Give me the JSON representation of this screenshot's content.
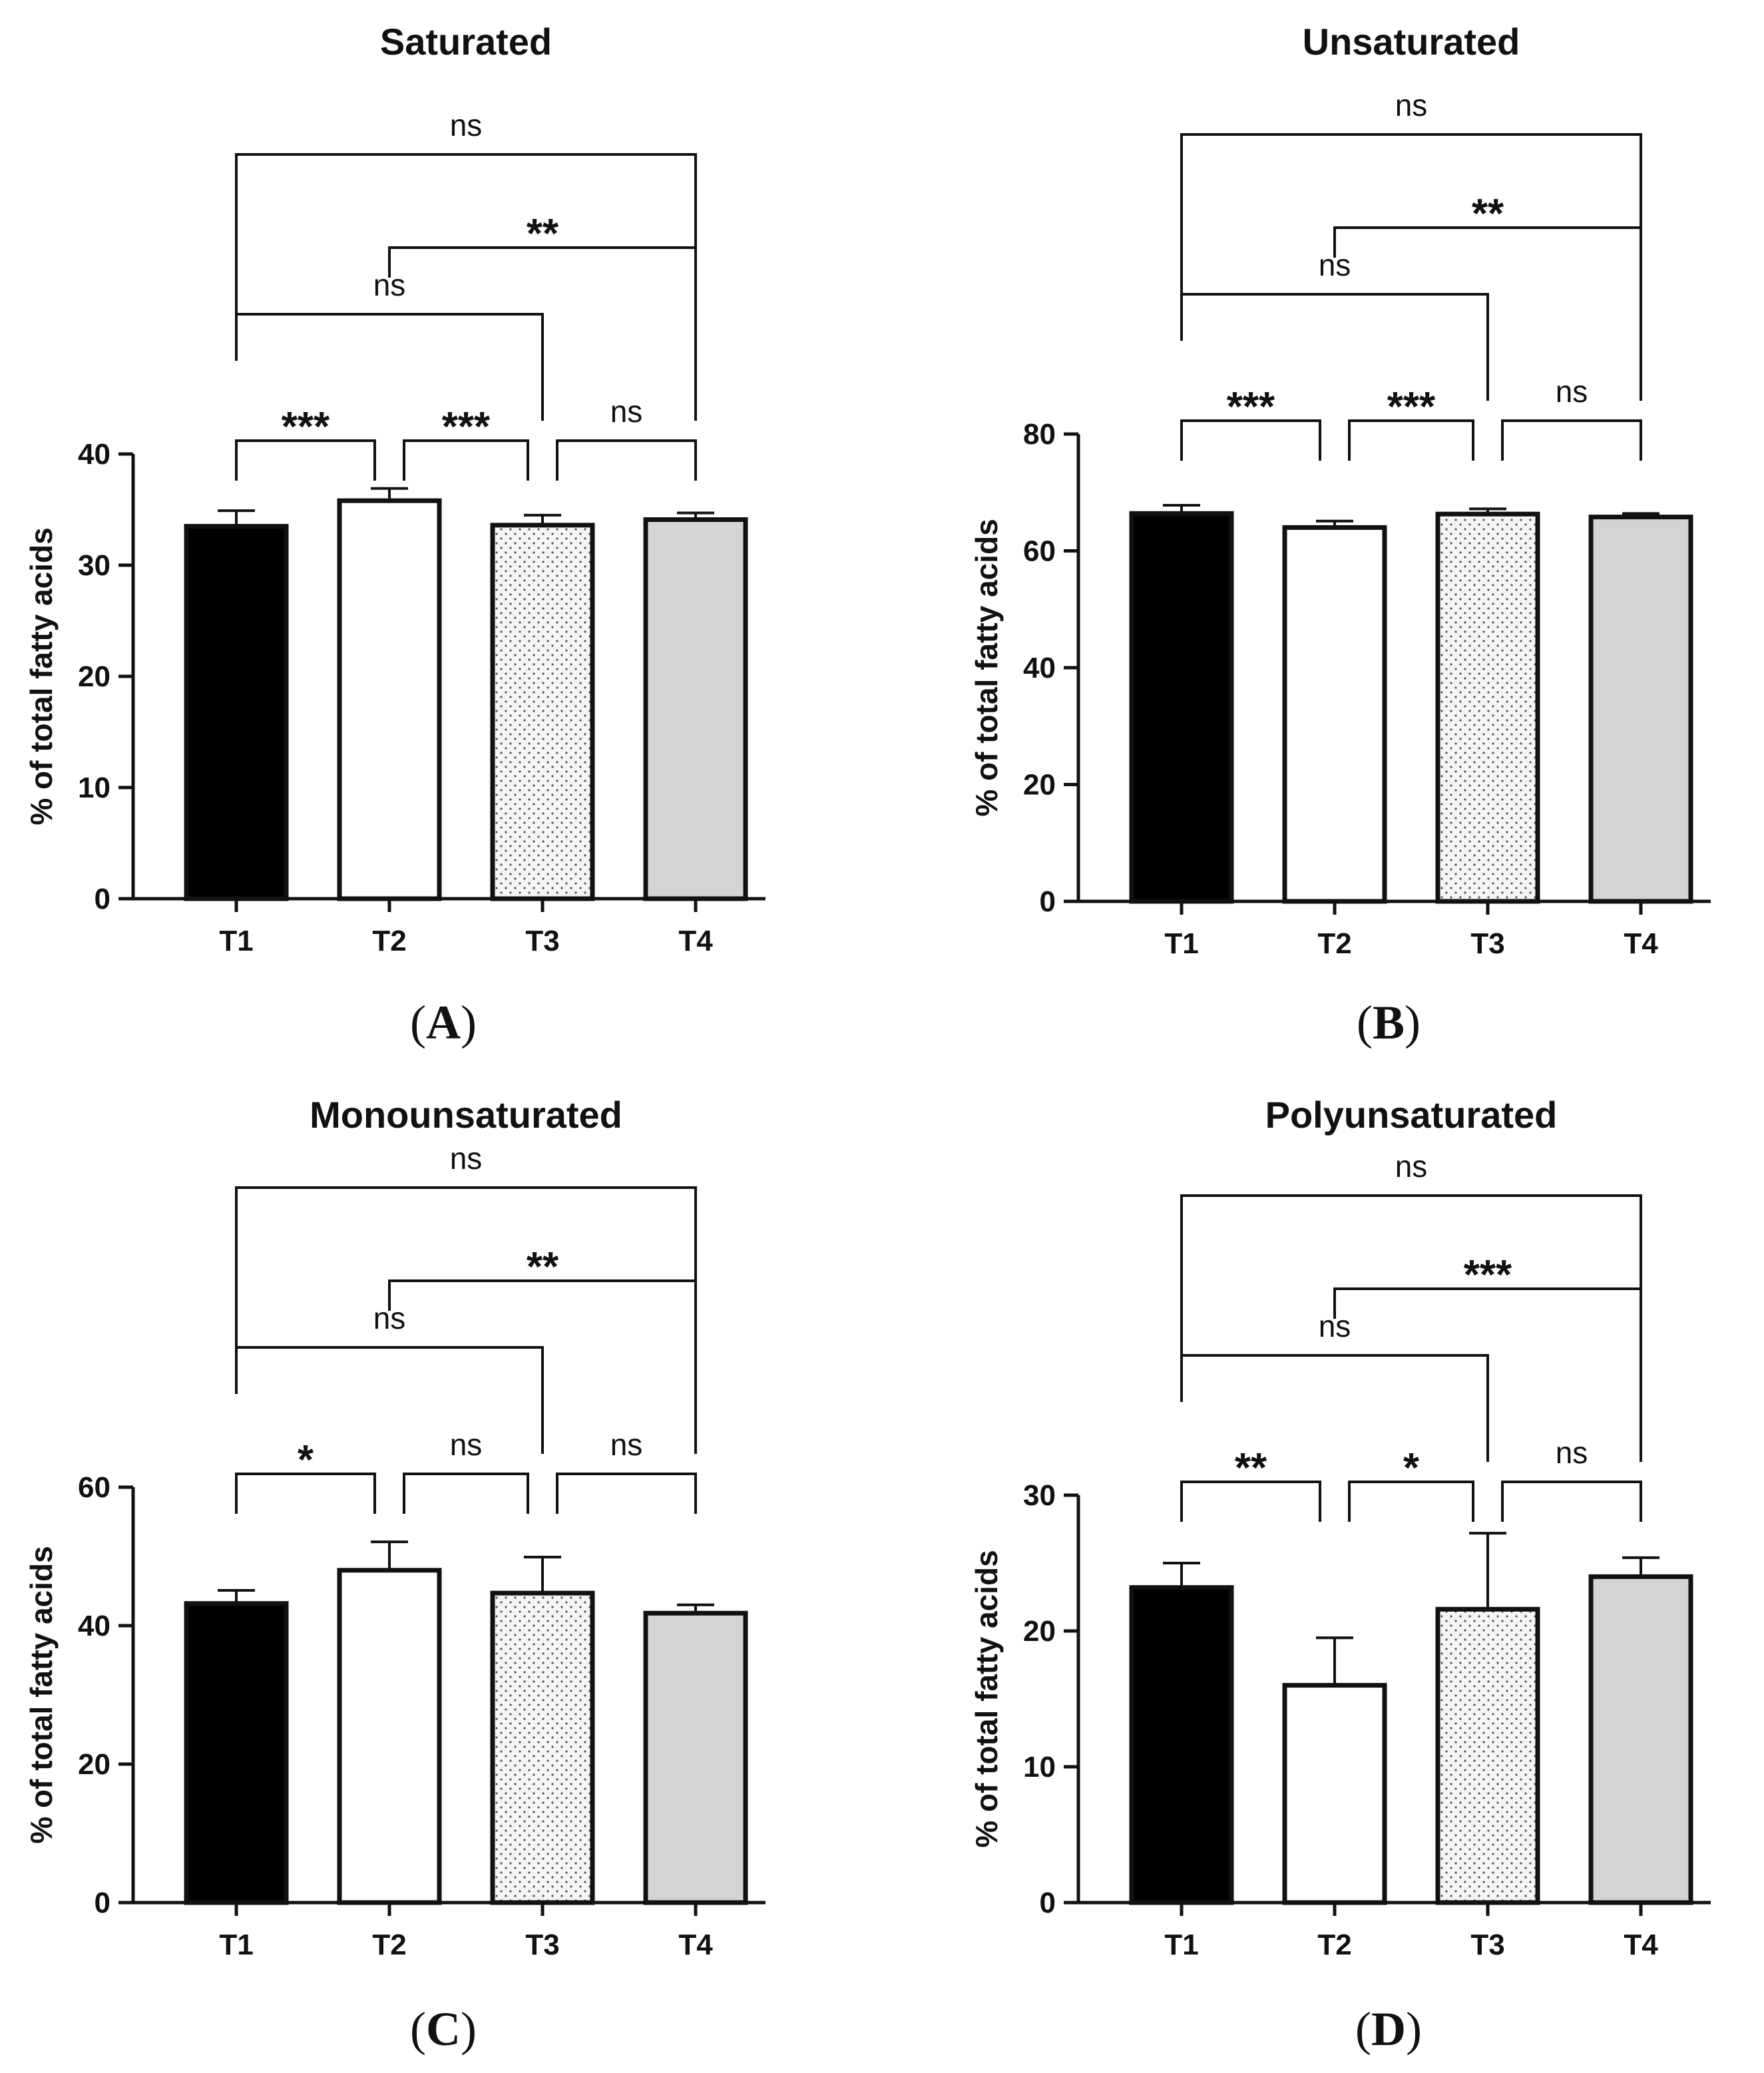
{
  "colors": {
    "ink": "#111111",
    "t1": "#000000",
    "t2": "#ffffff",
    "t3": "#f2f2f2",
    "t4": "#d4d4d4",
    "dots": "#555555"
  },
  "chart_data": [
    {
      "id": "A",
      "panel_label": "A",
      "type": "bar",
      "title": "Saturated",
      "ylabel": "% of total fatty acids",
      "categories": [
        "T1",
        "T2",
        "T3",
        "T4"
      ],
      "values": [
        33.5,
        35.8,
        33.6,
        34.1
      ],
      "errors": [
        1.4,
        1.1,
        0.9,
        0.6
      ],
      "ylim": [
        0,
        40
      ],
      "yticks": [
        0,
        10,
        20,
        30,
        40
      ],
      "comparisons": [
        {
          "from": 0,
          "to": 1,
          "label": "***",
          "level": 1
        },
        {
          "from": 1,
          "to": 2,
          "label": "***",
          "level": 1
        },
        {
          "from": 2,
          "to": 3,
          "label": "ns",
          "level": 1
        },
        {
          "from": 0,
          "to": 2,
          "label": "ns",
          "level": 2
        },
        {
          "from": 1,
          "to": 3,
          "label": "**",
          "level": 3
        },
        {
          "from": 0,
          "to": 3,
          "label": "ns",
          "level": 4
        }
      ]
    },
    {
      "id": "B",
      "panel_label": "B",
      "type": "bar",
      "title": "Unsaturated",
      "ylabel": "% of total fatty acids",
      "categories": [
        "T1",
        "T2",
        "T3",
        "T4"
      ],
      "values": [
        66.4,
        64.0,
        66.3,
        65.8
      ],
      "errors": [
        1.4,
        1.1,
        0.9,
        0.6
      ],
      "ylim": [
        0,
        80
      ],
      "yticks": [
        0,
        20,
        40,
        60,
        80
      ],
      "comparisons": [
        {
          "from": 0,
          "to": 1,
          "label": "***",
          "level": 1
        },
        {
          "from": 1,
          "to": 2,
          "label": "***",
          "level": 1
        },
        {
          "from": 2,
          "to": 3,
          "label": "ns",
          "level": 1
        },
        {
          "from": 0,
          "to": 2,
          "label": "ns",
          "level": 2
        },
        {
          "from": 1,
          "to": 3,
          "label": "**",
          "level": 3
        },
        {
          "from": 0,
          "to": 3,
          "label": "ns",
          "level": 4
        }
      ]
    },
    {
      "id": "C",
      "panel_label": "C",
      "type": "bar",
      "title": "Monounsaturated",
      "ylabel": "% of total fatty acids",
      "categories": [
        "T1",
        "T2",
        "T3",
        "T4"
      ],
      "values": [
        43.2,
        48.0,
        44.7,
        41.8
      ],
      "errors": [
        1.9,
        4.1,
        5.2,
        1.2
      ],
      "ylim": [
        0,
        60
      ],
      "yticks": [
        0,
        20,
        40,
        60
      ],
      "comparisons": [
        {
          "from": 0,
          "to": 1,
          "label": "*",
          "level": 1
        },
        {
          "from": 1,
          "to": 2,
          "label": "ns",
          "level": 1
        },
        {
          "from": 2,
          "to": 3,
          "label": "ns",
          "level": 1
        },
        {
          "from": 0,
          "to": 2,
          "label": "ns",
          "level": 2
        },
        {
          "from": 1,
          "to": 3,
          "label": "**",
          "level": 3
        },
        {
          "from": 0,
          "to": 3,
          "label": "ns",
          "level": 4
        }
      ]
    },
    {
      "id": "D",
      "panel_label": "D",
      "type": "bar",
      "title": "Polyunsaturated",
      "ylabel": "% of total fatty acids",
      "categories": [
        "T1",
        "T2",
        "T3",
        "T4"
      ],
      "values": [
        23.2,
        16.0,
        21.6,
        24.0
      ],
      "errors": [
        1.8,
        3.5,
        5.6,
        1.4
      ],
      "ylim": [
        0,
        30
      ],
      "yticks": [
        0,
        10,
        20,
        30
      ],
      "comparisons": [
        {
          "from": 0,
          "to": 1,
          "label": "**",
          "level": 1
        },
        {
          "from": 1,
          "to": 2,
          "label": "*",
          "level": 1
        },
        {
          "from": 2,
          "to": 3,
          "label": "ns",
          "level": 1
        },
        {
          "from": 0,
          "to": 2,
          "label": "ns",
          "level": 2
        },
        {
          "from": 1,
          "to": 3,
          "label": "***",
          "level": 3
        },
        {
          "from": 0,
          "to": 3,
          "label": "ns",
          "level": 4
        }
      ]
    }
  ]
}
